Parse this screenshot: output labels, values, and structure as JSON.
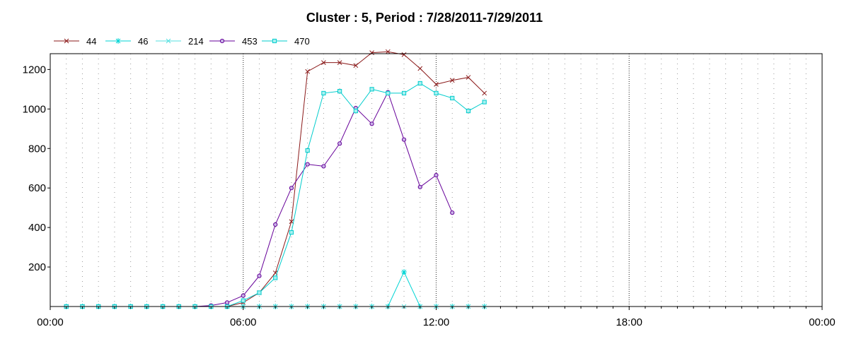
{
  "chart_data": {
    "type": "line",
    "title": "Cluster : 5, Period : 7/28/2011-7/29/2011",
    "xlabel": "",
    "ylabel": "",
    "x_range_hours": [
      0,
      24
    ],
    "ylim": [
      0,
      1280
    ],
    "x_tick_labels": [
      "00:00",
      "06:00",
      "12:00",
      "18:00",
      "00:00"
    ],
    "y_ticks": [
      200,
      400,
      600,
      800,
      1000,
      1200
    ],
    "grid": "dotted vertical every 30 minutes, bold dotted at 6 hours; no horizontal grid",
    "legend_position": "top-left",
    "x": [
      "00:30",
      "01:00",
      "01:30",
      "02:00",
      "02:30",
      "03:00",
      "03:30",
      "04:00",
      "04:30",
      "05:00",
      "05:30",
      "06:00",
      "06:30",
      "07:00",
      "07:30",
      "08:00",
      "08:30",
      "09:00",
      "09:30",
      "10:00",
      "10:30",
      "11:00",
      "11:30",
      "12:00",
      "12:30",
      "13:00",
      "13:30"
    ],
    "series": [
      {
        "name": "44",
        "color": "#8b1a1a",
        "marker": "x",
        "values": [
          0,
          0,
          0,
          0,
          0,
          0,
          0,
          0,
          0,
          0,
          0,
          20,
          70,
          170,
          430,
          1190,
          1235,
          1235,
          1220,
          1285,
          1290,
          1275,
          1205,
          1125,
          1145,
          1160,
          1080
        ]
      },
      {
        "name": "46",
        "color": "#00d4d4",
        "marker": "asterisk",
        "values": [
          0,
          0,
          0,
          0,
          0,
          0,
          0,
          0,
          0,
          0,
          0,
          0,
          0,
          0,
          0,
          0,
          0,
          0,
          0,
          0,
          0,
          175,
          0,
          0,
          0,
          0,
          0
        ]
      },
      {
        "name": "214",
        "color": "#55e0e0",
        "marker": "x",
        "values": [
          0,
          0,
          0,
          0,
          0,
          0,
          0,
          0,
          0,
          0,
          0,
          0,
          0,
          0,
          0,
          0,
          0,
          0,
          0,
          0,
          0,
          0,
          0,
          0,
          0,
          0,
          0
        ]
      },
      {
        "name": "453",
        "color": "#660099",
        "marker": "circle",
        "values": [
          0,
          0,
          0,
          0,
          0,
          0,
          0,
          0,
          0,
          5,
          20,
          55,
          155,
          415,
          600,
          720,
          710,
          825,
          1005,
          925,
          1085,
          845,
          605,
          665,
          475,
          null,
          null
        ]
      },
      {
        "name": "470",
        "color": "#00cccc",
        "marker": "square",
        "values": [
          0,
          0,
          0,
          0,
          0,
          0,
          0,
          0,
          0,
          0,
          0,
          30,
          70,
          145,
          375,
          790,
          1080,
          1090,
          990,
          1100,
          1080,
          1080,
          1130,
          1080,
          1055,
          990,
          1035
        ]
      }
    ]
  }
}
